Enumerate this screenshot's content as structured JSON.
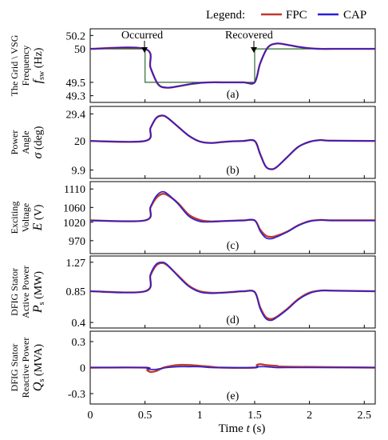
{
  "legend": {
    "title": "Legend:",
    "items": [
      {
        "label": "FPC",
        "color": "#c0392b"
      },
      {
        "label": "CAP",
        "color": "#2a1fd6"
      }
    ]
  },
  "xaxis": {
    "label_prefix": "Time ",
    "label_var": "t",
    "label_suffix": " (s)",
    "ticks": [
      "0",
      "0.5",
      "1",
      "1.5",
      "2",
      "2.5"
    ],
    "range": [
      0,
      2.6
    ]
  },
  "annotations": {
    "occurred": "Occurred",
    "recovered": "Recovered"
  },
  "chart_data": [
    {
      "panel": "(a)",
      "type": "line",
      "ylabel_lines": [
        "The Grid \\ VSG",
        "Frequency"
      ],
      "ysym": "f",
      "ysub": "sw",
      "yunit": " (Hz)",
      "ylim": [
        49.2,
        50.3
      ],
      "yticks": [
        "50.2",
        "50",
        "49.5",
        "49.3"
      ],
      "ytick_values": [
        50.2,
        50,
        49.5,
        49.3
      ],
      "grid_reference": {
        "x": [
          0,
          0.5,
          0.5,
          1.5,
          1.5,
          2.6
        ],
        "y": [
          50,
          50,
          49.5,
          49.5,
          50,
          50
        ],
        "color": "#2e6b2e"
      },
      "series": [
        {
          "name": "FPC",
          "x": [
            0,
            0.5,
            0.55,
            0.62,
            0.7,
            0.8,
            0.9,
            1.0,
            1.1,
            1.2,
            1.3,
            1.4,
            1.5,
            1.55,
            1.62,
            1.7,
            1.8,
            1.9,
            2.0,
            2.1,
            2.2,
            2.3,
            2.6
          ],
          "y": [
            50,
            50,
            49.72,
            49.47,
            49.42,
            49.44,
            49.47,
            49.49,
            49.5,
            49.5,
            49.5,
            49.5,
            49.5,
            49.78,
            50.02,
            50.08,
            50.06,
            50.03,
            50.01,
            50.0,
            50.0,
            50.0,
            50.0
          ]
        },
        {
          "name": "CAP",
          "x": [
            0,
            0.5,
            0.55,
            0.62,
            0.7,
            0.8,
            0.9,
            1.0,
            1.1,
            1.2,
            1.3,
            1.4,
            1.5,
            1.55,
            1.62,
            1.7,
            1.8,
            1.9,
            2.0,
            2.1,
            2.2,
            2.3,
            2.6
          ],
          "y": [
            50,
            50,
            49.72,
            49.47,
            49.42,
            49.44,
            49.47,
            49.49,
            49.5,
            49.5,
            49.5,
            49.5,
            49.5,
            49.78,
            50.02,
            50.08,
            50.06,
            50.03,
            50.01,
            50.0,
            50.0,
            50.0,
            50.0
          ]
        }
      ]
    },
    {
      "panel": "(b)",
      "type": "line",
      "ylabel_lines": [
        "Power",
        "Angle"
      ],
      "ysym": "σ",
      "ysub": "",
      "yunit": " (deg)",
      "ylim": [
        7,
        32
      ],
      "yticks": [
        "29.4",
        "20",
        "9.9"
      ],
      "ytick_values": [
        29.4,
        20,
        9.9
      ],
      "series": [
        {
          "name": "FPC",
          "x": [
            0,
            0.5,
            0.55,
            0.6,
            0.65,
            0.7,
            0.8,
            0.9,
            1.0,
            1.1,
            1.2,
            1.3,
            1.4,
            1.5,
            1.55,
            1.6,
            1.65,
            1.7,
            1.8,
            1.9,
            2.0,
            2.1,
            2.2,
            2.6
          ],
          "y": [
            20,
            20,
            24.5,
            27.9,
            28.8,
            28.2,
            25.0,
            21.8,
            19.8,
            19.3,
            19.6,
            19.9,
            20,
            20,
            15.5,
            11.2,
            10.2,
            10.9,
            14.5,
            18.0,
            19.7,
            20.3,
            20.1,
            20
          ]
        },
        {
          "name": "CAP",
          "x": [
            0,
            0.5,
            0.55,
            0.6,
            0.65,
            0.7,
            0.8,
            0.9,
            1.0,
            1.1,
            1.2,
            1.3,
            1.4,
            1.5,
            1.55,
            1.6,
            1.65,
            1.7,
            1.8,
            1.9,
            2.0,
            2.1,
            2.2,
            2.6
          ],
          "y": [
            20,
            20,
            24.5,
            27.9,
            28.8,
            28.2,
            25.0,
            21.8,
            19.8,
            19.3,
            19.6,
            19.9,
            20,
            20,
            15.5,
            11.2,
            10.2,
            10.9,
            14.5,
            18.0,
            19.7,
            20.3,
            20.1,
            20
          ]
        }
      ]
    },
    {
      "panel": "(c)",
      "type": "line",
      "ylabel_lines": [
        "Exciting",
        "Voltage"
      ],
      "ysym": "E",
      "ysub": "",
      "yunit": " (V)",
      "ylim": [
        935,
        1130
      ],
      "yticks": [
        "1110",
        "1060",
        "1020",
        "970"
      ],
      "ytick_values": [
        1110,
        1060,
        1020,
        970
      ],
      "series": [
        {
          "name": "FPC",
          "x": [
            0,
            0.5,
            0.55,
            0.6,
            0.65,
            0.7,
            0.8,
            0.9,
            1.0,
            1.1,
            1.2,
            1.3,
            1.4,
            1.5,
            1.55,
            1.6,
            1.65,
            1.7,
            1.8,
            1.9,
            2.0,
            2.1,
            2.2,
            2.6
          ],
          "y": [
            1025,
            1025,
            1060,
            1085,
            1096,
            1094,
            1072,
            1040,
            1026,
            1022,
            1023,
            1024,
            1025,
            1025,
            1000,
            984,
            980,
            983,
            995,
            1012,
            1023,
            1026,
            1025,
            1025
          ]
        },
        {
          "name": "CAP",
          "x": [
            0,
            0.5,
            0.55,
            0.6,
            0.65,
            0.7,
            0.8,
            0.9,
            1.0,
            1.1,
            1.2,
            1.3,
            1.4,
            1.5,
            1.55,
            1.6,
            1.65,
            1.7,
            1.8,
            1.9,
            2.0,
            2.1,
            2.2,
            2.6
          ],
          "y": [
            1025,
            1025,
            1062,
            1090,
            1102,
            1098,
            1070,
            1036,
            1022,
            1021,
            1023,
            1024,
            1025,
            1025,
            996,
            978,
            975,
            980,
            994,
            1011,
            1022,
            1026,
            1025,
            1025
          ]
        }
      ]
    },
    {
      "panel": "(d)",
      "type": "line",
      "ylabel_lines": [
        "DFIG Stator",
        "Active Power"
      ],
      "ysym": "P",
      "ysub": "s",
      "yunit": " (MW)",
      "ylim": [
        0.32,
        1.36
      ],
      "yticks": [
        "1.27",
        "0.85",
        "0.4"
      ],
      "ytick_values": [
        1.27,
        0.85,
        0.4
      ],
      "series": [
        {
          "name": "FPC",
          "x": [
            0,
            0.5,
            0.55,
            0.6,
            0.65,
            0.7,
            0.8,
            0.9,
            1.0,
            1.1,
            1.2,
            1.3,
            1.4,
            1.5,
            1.55,
            1.6,
            1.65,
            1.7,
            1.8,
            1.9,
            2.0,
            2.1,
            2.2,
            2.6
          ],
          "y": [
            0.85,
            0.85,
            1.08,
            1.22,
            1.26,
            1.23,
            1.08,
            0.93,
            0.85,
            0.83,
            0.83,
            0.84,
            0.85,
            0.84,
            0.62,
            0.48,
            0.45,
            0.48,
            0.6,
            0.74,
            0.83,
            0.86,
            0.86,
            0.85
          ]
        },
        {
          "name": "CAP",
          "x": [
            0,
            0.5,
            0.55,
            0.6,
            0.65,
            0.7,
            0.8,
            0.9,
            1.0,
            1.1,
            1.2,
            1.3,
            1.4,
            1.5,
            1.55,
            1.6,
            1.65,
            1.7,
            1.8,
            1.9,
            2.0,
            2.1,
            2.2,
            2.6
          ],
          "y": [
            0.85,
            0.85,
            1.1,
            1.24,
            1.27,
            1.24,
            1.07,
            0.92,
            0.84,
            0.82,
            0.83,
            0.84,
            0.85,
            0.84,
            0.6,
            0.46,
            0.43,
            0.47,
            0.59,
            0.73,
            0.82,
            0.86,
            0.86,
            0.85
          ]
        }
      ]
    },
    {
      "panel": "(e)",
      "type": "line",
      "ylabel_lines": [
        "DFIG Stator",
        "Reactive Power"
      ],
      "ysym": "Q",
      "ysub": "s",
      "yunit": " (MVA)",
      "ylim": [
        -0.42,
        0.42
      ],
      "yticks": [
        "0.3",
        "0",
        "-0.3"
      ],
      "ytick_values": [
        0.3,
        0,
        -0.3
      ],
      "series": [
        {
          "name": "FPC",
          "x": [
            0,
            0.5,
            0.52,
            0.55,
            0.6,
            0.65,
            0.7,
            0.8,
            0.9,
            1.0,
            1.1,
            1.2,
            1.5,
            1.52,
            1.55,
            1.6,
            1.7,
            1.8,
            2.6
          ],
          "y": [
            0,
            0,
            -0.03,
            -0.05,
            -0.04,
            -0.01,
            0.01,
            0.03,
            0.03,
            0.02,
            0.01,
            0.0,
            0.0,
            0.03,
            0.04,
            0.03,
            0.02,
            0.01,
            0.0
          ]
        },
        {
          "name": "CAP",
          "x": [
            0,
            0.5,
            0.52,
            0.55,
            0.6,
            0.65,
            0.7,
            0.8,
            0.9,
            1.0,
            1.1,
            1.2,
            1.5,
            1.52,
            1.55,
            1.6,
            1.7,
            1.8,
            2.6
          ],
          "y": [
            0,
            0,
            -0.01,
            -0.02,
            -0.02,
            -0.01,
            0.0,
            0.01,
            0.01,
            0.01,
            0.0,
            0.0,
            0.0,
            0.01,
            0.01,
            0.01,
            0.0,
            0.0,
            0.0
          ]
        }
      ]
    }
  ]
}
